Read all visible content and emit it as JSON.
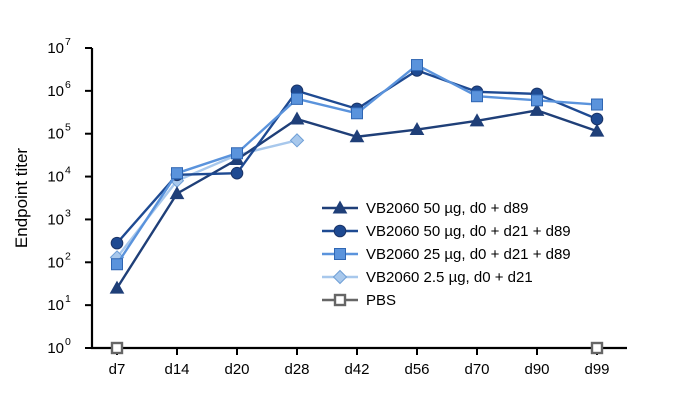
{
  "chart_data": {
    "type": "line",
    "title": "",
    "xlabel": "",
    "ylabel": "Endpoint titer",
    "y_scale": "log10",
    "ylim": [
      1,
      10000000
    ],
    "categories": [
      "d7",
      "d14",
      "d20",
      "d28",
      "d42",
      "d56",
      "d70",
      "d90",
      "d99"
    ],
    "yticks": [
      {
        "base": "10",
        "exp": "0"
      },
      {
        "base": "10",
        "exp": "1"
      },
      {
        "base": "10",
        "exp": "2"
      },
      {
        "base": "10",
        "exp": "3"
      },
      {
        "base": "10",
        "exp": "4"
      },
      {
        "base": "10",
        "exp": "5"
      },
      {
        "base": "10",
        "exp": "6"
      },
      {
        "base": "10",
        "exp": "7"
      }
    ],
    "grid": false,
    "legend_position": "center-right",
    "series": [
      {
        "name": "VB2060 50 µg, d0 + d89",
        "marker": "triangle",
        "color": "#1f3f78",
        "values": [
          25,
          4000,
          25000,
          220000,
          85000,
          125000,
          200000,
          350000,
          115000
        ]
      },
      {
        "name": "VB2060 50 µg, d0 + d21 + d89",
        "marker": "circle",
        "color": "#1e4a92",
        "values": [
          280,
          11000,
          12000,
          1000000,
          380000,
          3000000,
          950000,
          850000,
          220000
        ]
      },
      {
        "name": "VB2060 25 µg, d0 + d21 + d89",
        "marker": "square",
        "color": "#5a93dc",
        "values": [
          90,
          12000,
          35000,
          650000,
          300000,
          4000000,
          750000,
          600000,
          480000
        ]
      },
      {
        "name": "VB2060 2.5 µg, d0 + d21",
        "marker": "diamond",
        "color": "#a8c8ec",
        "values": [
          130,
          8000,
          32000,
          70000,
          null,
          null,
          null,
          null,
          null
        ]
      },
      {
        "name": "PBS",
        "marker": "open-square",
        "color": "#666666",
        "values": [
          1,
          null,
          null,
          null,
          null,
          null,
          null,
          null,
          1
        ]
      }
    ]
  }
}
